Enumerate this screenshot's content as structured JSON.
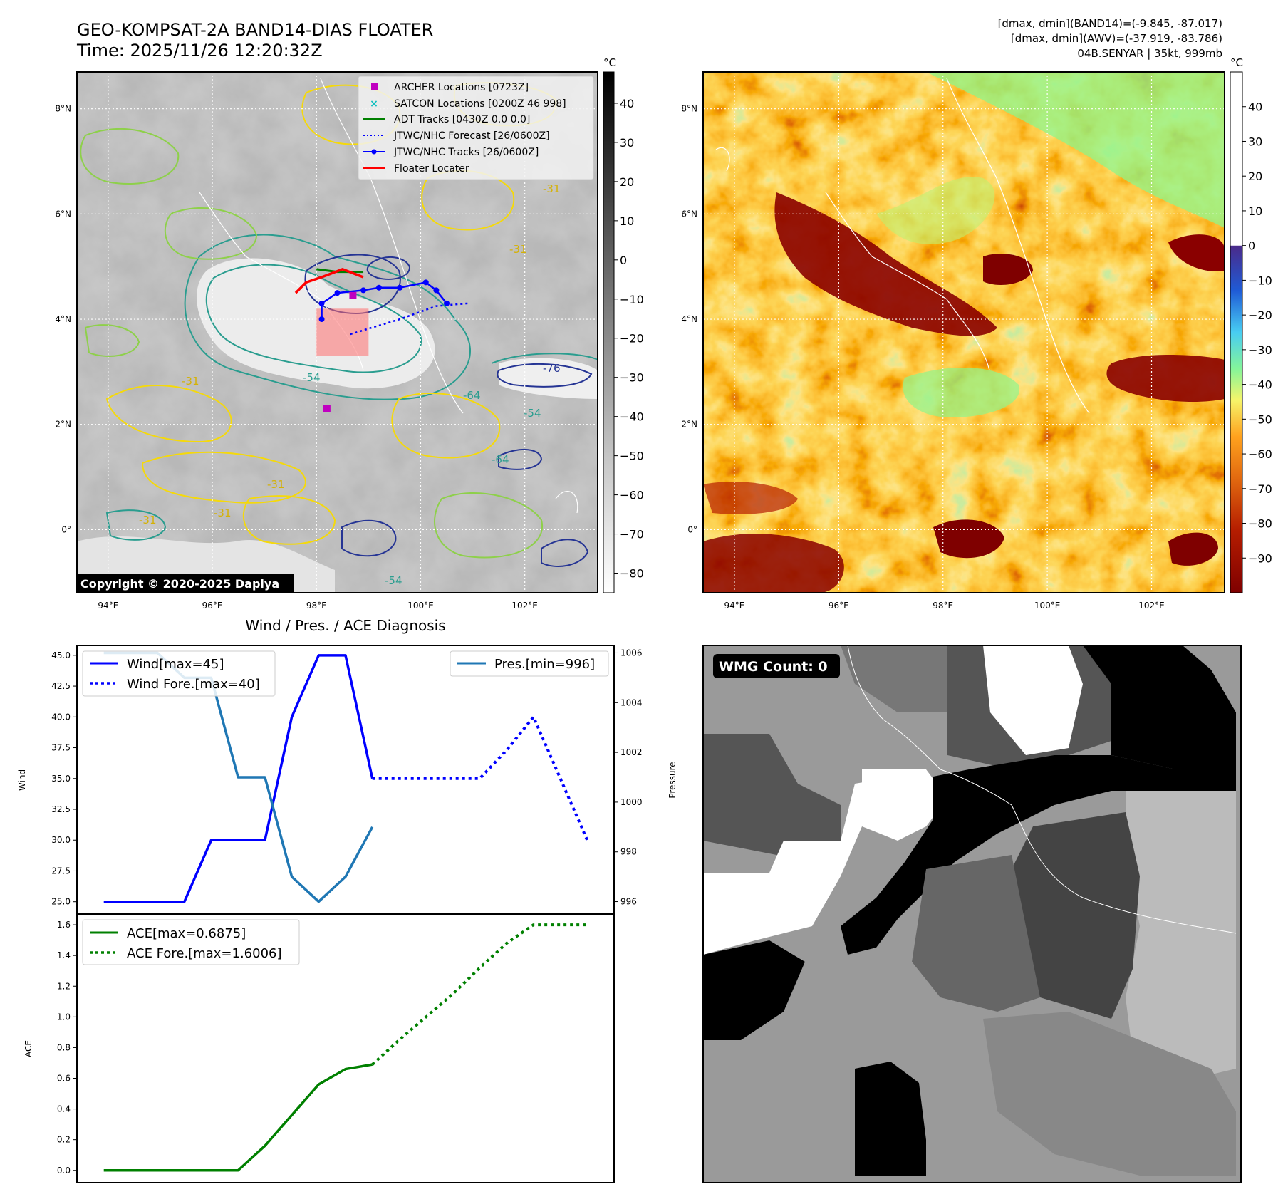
{
  "header": {
    "title_line1": "GEO-KOMPSAT-2A BAND14-DIAS FLOATER",
    "title_line2": "Time: 2025/11/26 12:20:32Z",
    "info_line1": "[dmax, dmin](BAND14)=(-9.845, -87.017)",
    "info_line2": "[dmax, dmin](AWV)=(-37.919, -83.786)",
    "info_line3": "04B.SENYAR | 35kt, 999mb",
    "copyright": "Copyright © 2020-2025 Dapiya"
  },
  "maps": {
    "lon_labels": [
      "94°E",
      "96°E",
      "98°E",
      "100°E",
      "102°E"
    ],
    "lat_labels": [
      "8°N",
      "6°N",
      "4°N",
      "2°N",
      "0°"
    ],
    "lon_values": [
      94,
      96,
      98,
      100,
      102
    ],
    "lat_values": [
      8,
      6,
      4,
      2,
      0
    ],
    "lon_range": [
      93.4,
      103.4
    ],
    "lat_range": [
      -1.2,
      8.7
    ],
    "contour_labels": [
      "-31",
      "-31",
      "-31",
      "-54",
      "-54",
      "-64",
      "-76",
      "-31",
      "-31",
      "-31",
      "-54",
      "-64"
    ],
    "legend": [
      {
        "label": "ARCHER Locations [0723Z]",
        "color": "#c000c0",
        "marker": "square"
      },
      {
        "label": "SATCON Locations [0200Z 46 998]",
        "color": "#10c0c0",
        "marker": "x"
      },
      {
        "label": "ADT Tracks [0430Z 0.0 0.0]",
        "color": "#008000",
        "marker": "line"
      },
      {
        "label": "JTWC/NHC Forecast [26/0600Z]",
        "color": "#0000ff",
        "marker": "dotted"
      },
      {
        "label": "JTWC/NHC Tracks [26/0600Z]",
        "color": "#0000ff",
        "marker": "line-dot"
      },
      {
        "label": "Floater Locater",
        "color": "#ff0000",
        "marker": "line"
      }
    ],
    "archer_points": [
      [
        98.7,
        4.45
      ],
      [
        98.2,
        2.3
      ]
    ],
    "jtwc_track": [
      [
        98.1,
        4.0
      ],
      [
        98.1,
        4.3
      ],
      [
        98.4,
        4.5
      ],
      [
        98.9,
        4.55
      ],
      [
        99.2,
        4.6
      ],
      [
        99.6,
        4.6
      ],
      [
        100.1,
        4.7
      ],
      [
        100.3,
        4.55
      ],
      [
        100.5,
        4.3
      ]
    ],
    "jtwc_forecast": [
      [
        100.9,
        4.3
      ],
      [
        100.3,
        4.25
      ],
      [
        99.6,
        4.0
      ],
      [
        99.1,
        3.85
      ],
      [
        98.6,
        3.7
      ]
    ],
    "adt_track": [
      [
        98.0,
        4.95
      ],
      [
        98.4,
        4.9
      ],
      [
        98.9,
        4.9
      ]
    ],
    "floater_track": [
      [
        97.6,
        4.5
      ],
      [
        97.8,
        4.7
      ],
      [
        98.1,
        4.8
      ],
      [
        98.5,
        4.95
      ],
      [
        98.9,
        4.8
      ]
    ],
    "floater_box": {
      "lon_min": 98.0,
      "lon_max": 99.0,
      "lat_min": 3.3,
      "lat_max": 4.2
    }
  },
  "colorbar_gray": {
    "unit": "°C",
    "ticks": [
      "40",
      "30",
      "20",
      "10",
      "0",
      "−10",
      "−20",
      "−30",
      "−40",
      "−50",
      "−60",
      "−70",
      "−80"
    ],
    "tick_values": [
      40,
      30,
      20,
      10,
      0,
      -10,
      -20,
      -30,
      -40,
      -50,
      -60,
      -70,
      -80
    ],
    "range": [
      -85,
      48
    ]
  },
  "colorbar_color": {
    "unit": "°C",
    "ticks": [
      "40",
      "30",
      "20",
      "10",
      "0",
      "−10",
      "−20",
      "−30",
      "−40",
      "−50",
      "−60",
      "−70",
      "−80",
      "−90"
    ],
    "tick_values": [
      40,
      30,
      20,
      10,
      0,
      -10,
      -20,
      -30,
      -40,
      -50,
      -60,
      -70,
      -80,
      -90
    ],
    "range": [
      -100,
      50
    ]
  },
  "chart_data": [
    {
      "type": "line",
      "title": "Wind / Pres. / ACE Diagnosis",
      "ylabel": "Wind",
      "y2label": "Pressure",
      "ylim": [
        24.0,
        45.8
      ],
      "y2lim": [
        995.5,
        1006.3
      ],
      "yticks": [
        "45.0",
        "42.5",
        "40.0",
        "37.5",
        "35.0",
        "32.5",
        "30.0",
        "27.5",
        "25.0"
      ],
      "ytick_values": [
        45,
        42.5,
        40,
        37.5,
        35,
        32.5,
        30,
        27.5,
        25
      ],
      "y2ticks": [
        "1006",
        "1004",
        "1002",
        "1000",
        "998",
        "996"
      ],
      "y2tick_values": [
        1006,
        1004,
        1002,
        1000,
        998,
        996
      ],
      "xlim": [
        -1,
        19
      ],
      "series": [
        {
          "name": "Wind[max=45]",
          "axis": "left",
          "style": "solid",
          "color": "#0000ff",
          "x": [
            0,
            1,
            2,
            3,
            4,
            5,
            6,
            7,
            8,
            9,
            10
          ],
          "values": [
            25,
            25,
            25,
            25,
            30,
            30,
            30,
            40,
            45,
            45,
            35
          ]
        },
        {
          "name": "Wind Fore.[max=40]",
          "axis": "left",
          "style": "dotted",
          "color": "#0000ff",
          "x": [
            10,
            11,
            12,
            13,
            14,
            15,
            16,
            17,
            18
          ],
          "values": [
            35,
            35,
            35,
            35,
            35,
            37.3,
            40,
            35,
            30
          ]
        },
        {
          "name": "Pres.[min=996]",
          "axis": "right",
          "style": "solid",
          "color": "#1f77b4",
          "x": [
            0,
            1,
            2,
            3,
            4,
            5,
            6,
            7,
            8,
            9,
            10
          ],
          "values": [
            1006,
            1006,
            1006,
            1005,
            1005,
            1001,
            1001,
            997,
            996,
            997,
            999
          ]
        }
      ]
    },
    {
      "type": "line",
      "ylabel": "ACE",
      "ylim": [
        -0.08,
        1.67
      ],
      "yticks": [
        "1.6",
        "1.4",
        "1.2",
        "1.0",
        "0.8",
        "0.6",
        "0.4",
        "0.2",
        "0.0"
      ],
      "ytick_values": [
        1.6,
        1.4,
        1.2,
        1.0,
        0.8,
        0.6,
        0.4,
        0.2,
        0.0
      ],
      "xlim": [
        -1,
        19
      ],
      "series": [
        {
          "name": "ACE[max=0.6875]",
          "style": "solid",
          "color": "#008000",
          "x": [
            0,
            1,
            2,
            3,
            4,
            5,
            6,
            7,
            8,
            9,
            10
          ],
          "values": [
            0,
            0,
            0,
            0,
            0,
            0,
            0.16,
            0.36,
            0.56,
            0.66,
            0.69
          ]
        },
        {
          "name": "ACE Fore.[max=1.6006]",
          "style": "dotted",
          "color": "#008000",
          "x": [
            10,
            11,
            12,
            13,
            14,
            15,
            16,
            17,
            18
          ],
          "values": [
            0.69,
            0.85,
            1.0,
            1.15,
            1.32,
            1.48,
            1.6,
            1.6,
            1.6
          ]
        }
      ]
    }
  ],
  "wmg": {
    "label": "WMG Count: 0"
  }
}
